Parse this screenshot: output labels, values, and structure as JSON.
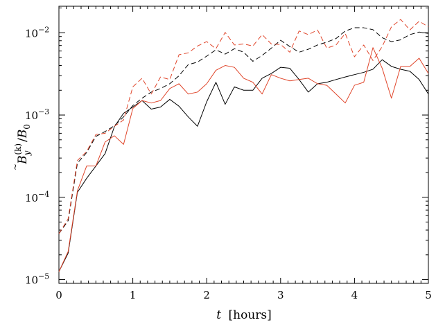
{
  "chart_data": {
    "type": "line",
    "xlabel": {
      "symbol": "t",
      "unit": "[hours]"
    },
    "ylabel": {
      "base": "B",
      "accent": "~",
      "sub": "y",
      "sup": "(k)",
      "divider": "/",
      "ref_base": "B",
      "ref_sub": "0"
    },
    "xlim": [
      0,
      5
    ],
    "ylim": [
      9e-06,
      0.021
    ],
    "yscale": "log",
    "x_ticks": [
      "0",
      "1",
      "2",
      "3",
      "4",
      "5"
    ],
    "y_ticks": [
      {
        "value": 1e-05,
        "base": "10",
        "exp": "−5"
      },
      {
        "value": 0.0001,
        "base": "10",
        "exp": "−4"
      },
      {
        "value": 0.001,
        "base": "10",
        "exp": "−3"
      },
      {
        "value": 0.01,
        "base": "10",
        "exp": "−2"
      }
    ],
    "grid": false,
    "legend": "none",
    "x": [
      0,
      0.125,
      0.25,
      0.375,
      0.5,
      0.625,
      0.75,
      0.875,
      1.0,
      1.125,
      1.25,
      1.375,
      1.5,
      1.625,
      1.75,
      1.875,
      2.0,
      2.125,
      2.25,
      2.375,
      2.5,
      2.625,
      2.75,
      2.875,
      3.0,
      3.125,
      3.25,
      3.375,
      3.5,
      3.625,
      3.75,
      3.875,
      4.0,
      4.125,
      4.25,
      4.375,
      4.5,
      4.625,
      4.75,
      4.875,
      5.0
    ],
    "series": [
      {
        "style": "solid",
        "color": "#000000",
        "values": [
          1.25e-05,
          2.1e-05,
          0.000115,
          0.00017,
          0.00024,
          0.00034,
          0.00072,
          0.00105,
          0.00125,
          0.0015,
          0.00118,
          0.00125,
          0.00155,
          0.00128,
          0.00095,
          0.00073,
          0.00145,
          0.0025,
          0.00135,
          0.0022,
          0.002,
          0.002,
          0.0028,
          0.0032,
          0.0038,
          0.0037,
          0.0027,
          0.0019,
          0.0024,
          0.0025,
          0.0027,
          0.0029,
          0.0031,
          0.0033,
          0.0036,
          0.0047,
          0.0039,
          0.0036,
          0.0034,
          0.0027,
          0.0018
        ]
      },
      {
        "style": "solid",
        "color": "#e0452a",
        "values": [
          1.25e-05,
          2.2e-05,
          0.00012,
          0.00024,
          0.00024,
          0.00047,
          0.00056,
          0.00044,
          0.0012,
          0.0015,
          0.0014,
          0.0015,
          0.0021,
          0.0024,
          0.0018,
          0.0019,
          0.0024,
          0.0035,
          0.004,
          0.0038,
          0.0028,
          0.0025,
          0.0018,
          0.0031,
          0.0028,
          0.0026,
          0.0027,
          0.0028,
          0.0024,
          0.0023,
          0.0018,
          0.0014,
          0.0023,
          0.0025,
          0.0066,
          0.0037,
          0.0016,
          0.0039,
          0.0039,
          0.0049,
          0.0032
        ]
      },
      {
        "style": "dashed",
        "color": "#000000",
        "values": [
          3.6e-05,
          5.2e-05,
          0.00026,
          0.00035,
          0.00055,
          0.00063,
          0.00074,
          0.00095,
          0.0013,
          0.0016,
          0.0019,
          0.0021,
          0.0024,
          0.003,
          0.0041,
          0.0044,
          0.0052,
          0.0062,
          0.0055,
          0.0064,
          0.0058,
          0.0045,
          0.0053,
          0.0065,
          0.0081,
          0.0068,
          0.0058,
          0.0063,
          0.0071,
          0.0077,
          0.0085,
          0.0105,
          0.0115,
          0.0115,
          0.0109,
          0.0087,
          0.0078,
          0.0082,
          0.0095,
          0.0102,
          0.0098
        ]
      },
      {
        "style": "dashed",
        "color": "#e0452a",
        "values": [
          3.6e-05,
          5.5e-05,
          0.00028,
          0.00036,
          0.00058,
          0.0006,
          0.00073,
          0.00087,
          0.0022,
          0.0028,
          0.0018,
          0.0029,
          0.0027,
          0.0054,
          0.0057,
          0.0069,
          0.0078,
          0.0064,
          0.0101,
          0.0071,
          0.0073,
          0.0069,
          0.0095,
          0.0073,
          0.0072,
          0.0058,
          0.0105,
          0.0095,
          0.0108,
          0.0065,
          0.0071,
          0.0098,
          0.0051,
          0.0071,
          0.0046,
          0.0068,
          0.0118,
          0.0145,
          0.0108,
          0.0138,
          0.0118
        ]
      }
    ]
  }
}
